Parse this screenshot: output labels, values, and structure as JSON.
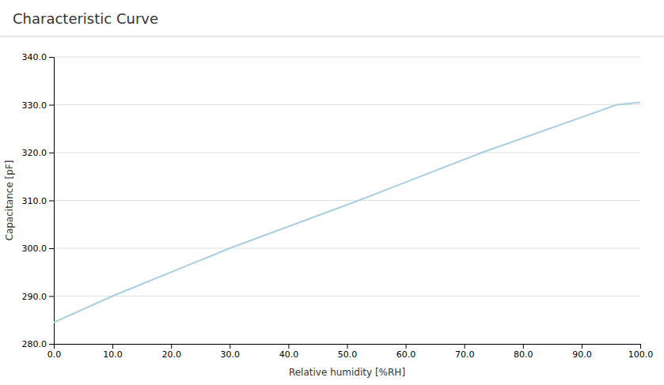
{
  "chart_data": {
    "type": "line",
    "title": "Characteristic Curve",
    "xlabel": "Relative humidity [%RH]",
    "ylabel": "Capacitance [pF]",
    "x": [
      0.0,
      10.0,
      30.0,
      52.0,
      73.0,
      96.0,
      100.0
    ],
    "values": [
      284.5,
      290.0,
      300.0,
      310.0,
      320.0,
      330.0,
      330.5
    ],
    "color": "#a8cfe0",
    "xlim": [
      0.0,
      100.0
    ],
    "ylim": [
      280.0,
      340.0
    ],
    "xticks": [
      {
        "value": 0,
        "label": "0.0"
      },
      {
        "value": 10,
        "label": "10.0"
      },
      {
        "value": 20,
        "label": "20.0"
      },
      {
        "value": 30,
        "label": "30.0"
      },
      {
        "value": 40,
        "label": "40.0"
      },
      {
        "value": 50,
        "label": "50.0"
      },
      {
        "value": 60,
        "label": "60.0"
      },
      {
        "value": 70,
        "label": "70.0"
      },
      {
        "value": 80,
        "label": "80.0"
      },
      {
        "value": 90,
        "label": "90.0"
      },
      {
        "value": 100,
        "label": "100.0"
      }
    ],
    "yticks": [
      {
        "value": 280,
        "label": "280.0"
      },
      {
        "value": 290,
        "label": "290.0"
      },
      {
        "value": 300,
        "label": "300.0"
      },
      {
        "value": 310,
        "label": "310.0"
      },
      {
        "value": 320,
        "label": "320.0"
      },
      {
        "value": 330,
        "label": "330.0"
      },
      {
        "value": 340,
        "label": "340.0"
      }
    ],
    "grid": "y"
  }
}
